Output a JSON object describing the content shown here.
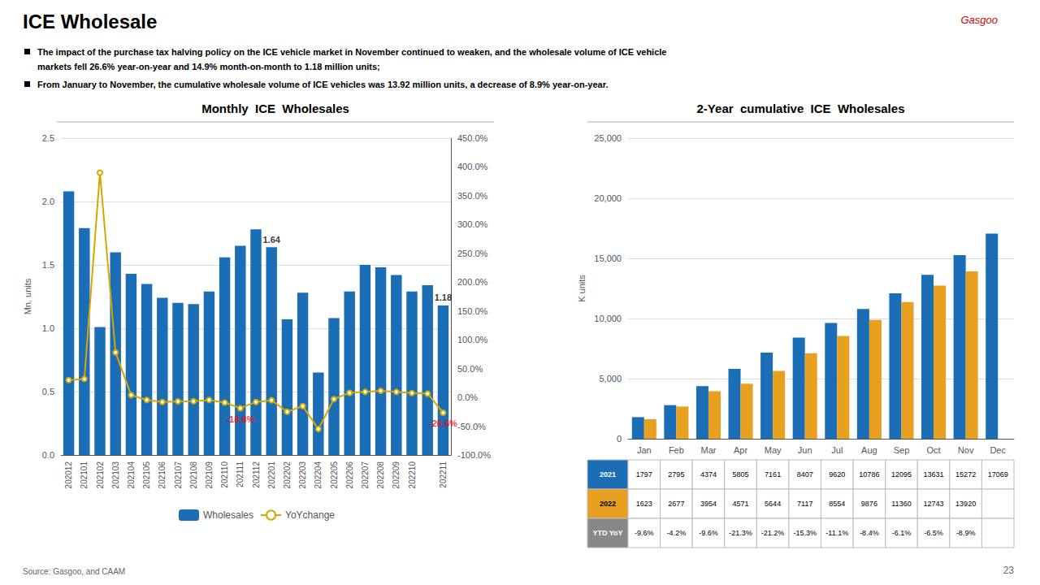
{
  "title": "ICE Wholesale",
  "annotations": [
    {
      "text": "The impact of the purchase tax halving policy on the ICE vehicle market in November continued to weaken, and the wholesale volume of ICE vehicle"
    },
    {
      "text": "markets fell 26.6% year-on-year and 14.9% month-on-month to 1.18 million units;"
    },
    {
      "text": "From January to November, the cumulative wholesale volume of ICE vehicles was 13.92 million units, a decrease of 8.9% year-on-year."
    },
    {
      "text": "Source: Gasgoo, and CAAM",
      "color": "#666666"
    },
    {
      "text": "23",
      "color": "#666666"
    },
    {
      "text": "Gasgoo",
      "color": "#CC0000"
    }
  ],
  "chart_data": [
    {
      "type": "bar",
      "title": "Monthly  ICE  Wholesales",
      "ylabel": "Mn. units",
      "categories": [
        "202012",
        "202101",
        "202102",
        "202103",
        "202104",
        "202105",
        "202106",
        "202107",
        "202108",
        "202109",
        "202110",
        "202111",
        "202112",
        "202201",
        "202202",
        "202203",
        "202204",
        "202205",
        "202206",
        "202207",
        "202208",
        "202209",
        "202210",
        null,
        "202211"
      ],
      "series": [
        {
          "name": "Wholesales",
          "type": "bar",
          "color": "#1B6EB5",
          "values": [
            2.08,
            1.79,
            1.01,
            1.6,
            1.43,
            1.35,
            1.24,
            1.2,
            1.19,
            1.29,
            1.56,
            1.65,
            1.78,
            1.64,
            1.07,
            1.28,
            0.65,
            1.08,
            1.29,
            1.5,
            1.48,
            1.42,
            1.29,
            1.34,
            1.18
          ]
        },
        {
          "name": "YoYchange",
          "type": "line",
          "axis": "y2",
          "color": "#D4A800",
          "marker": "circle",
          "values": [
            30.0,
            32.0,
            390.0,
            78.0,
            4.0,
            -4.5,
            -8.0,
            -7.0,
            -6.5,
            -4.5,
            -9.0,
            -18.8,
            -8.0,
            -5.0,
            -25.0,
            -15.0,
            -55.0,
            -3.0,
            8.0,
            9.5,
            11.5,
            9.5,
            7.5,
            6.5,
            -26.6
          ]
        }
      ],
      "ylim": [
        0.0,
        2.5
      ],
      "yticks": [
        {
          "value": 0,
          "label": "0.0"
        },
        0.5,
        {
          "value": 1,
          "label": "1.0"
        },
        1.5,
        {
          "value": 2,
          "label": "2.0"
        },
        2.5
      ],
      "y2lim": [
        -100,
        450
      ],
      "y2ticks": [
        {
          "value": -100,
          "label": "-100.0%"
        },
        {
          "value": -50,
          "label": "-50.0%"
        },
        {
          "value": 0,
          "label": "0.0%"
        },
        {
          "value": 50,
          "label": "50.0%"
        },
        {
          "value": 100,
          "label": "100.0%"
        },
        {
          "value": 150,
          "label": "150.0%"
        },
        {
          "value": 200,
          "label": "200.0%"
        },
        {
          "value": 250,
          "label": "250.0%"
        },
        {
          "value": 300,
          "label": "300.0%"
        },
        {
          "value": 350,
          "label": "350.0%"
        },
        {
          "value": 400,
          "label": "400.0%"
        },
        {
          "value": 450,
          "label": "450.0%"
        }
      ],
      "grid": true,
      "legend": "bottom",
      "annotations": [
        {
          "text": "1.64",
          "x": "202201",
          "y": 1.64
        },
        {
          "text": "1.18",
          "x": "202211",
          "y": 1.18
        },
        {
          "text": "-18.8%",
          "x": "202111",
          "y": -18.8,
          "axis": "y2",
          "color": "red"
        },
        {
          "text": "-26.6%",
          "x": "202211",
          "y": -26.6,
          "axis": "y2",
          "color": "red"
        }
      ]
    },
    {
      "type": "bar",
      "title": "2-Year  cumulative  ICE  Wholesales",
      "ylabel": "K units",
      "categories": [
        "Jan",
        "Feb",
        "Mar",
        "Apr",
        "May",
        "Jun",
        "Jul",
        "Aug",
        "Sep",
        "Oct",
        "Nov",
        "Dec"
      ],
      "series": [
        {
          "name": "2021",
          "color": "#1B6EB5",
          "values": [
            1797,
            2795,
            4374,
            5805,
            7161,
            8407,
            9620,
            10786,
            12095,
            13631,
            15272,
            17069
          ]
        },
        {
          "name": "2022",
          "color": "#E8A020",
          "values": [
            1623,
            2677,
            3954,
            4571,
            5644,
            7117,
            8554,
            9876,
            11360,
            12743,
            13920,
            null
          ]
        }
      ],
      "ylim": [
        0,
        25000
      ],
      "yticks": [
        0,
        {
          "value": 5000,
          "label": "5,000"
        },
        {
          "value": 10000,
          "label": "10,000"
        },
        {
          "value": 15000,
          "label": "15,000"
        },
        {
          "value": 20000,
          "label": "20,000"
        },
        {
          "value": 25000,
          "label": "25,000"
        }
      ],
      "grid": true,
      "table": {
        "name": "YTD YoY",
        "color": "#888888",
        "values": [
          "-9.6%",
          "-4.2%",
          "-9.6%",
          "-21.3%",
          "-21.2%",
          "-15.3%",
          "-11.1%",
          "-8.4%",
          "-6.1%",
          "-6.5%",
          "-8.9%",
          null
        ]
      }
    }
  ]
}
